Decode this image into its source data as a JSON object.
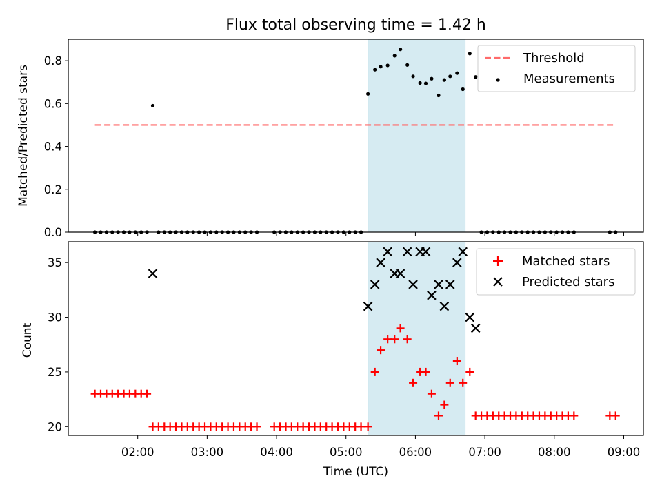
{
  "title": "Flux total observing time = 1.42 h",
  "colors": {
    "threshold": "#ff6b6b",
    "measurement": "#000000",
    "matched": "#ff0000",
    "predicted": "#000000",
    "highlight_fill": "#add8e6"
  },
  "chart_data": [
    {
      "type": "scatter",
      "panel": "top",
      "ylabel": "Matched/Predicted stars",
      "xlabel": "",
      "xlim": [
        "01:00",
        "09:17"
      ],
      "ylim": [
        0,
        0.9
      ],
      "yticks": [
        0.0,
        0.2,
        0.4,
        0.6,
        0.8
      ],
      "ytick_labels": [
        "0.0",
        "0.2",
        "0.4",
        "0.6",
        "0.8"
      ],
      "highlight_span": [
        "05:19",
        "06:43"
      ],
      "legend_position": "upper right",
      "legend": [
        "Threshold",
        "Measurements"
      ],
      "threshold": {
        "name": "Threshold",
        "value": 0.5,
        "x": [
          "01:23",
          "08:52"
        ],
        "style": "dashed"
      },
      "series": [
        {
          "name": "Measurements",
          "marker": "dot",
          "points": [
            [
              "01:23",
              0
            ],
            [
              "01:28",
              0
            ],
            [
              "01:33",
              0
            ],
            [
              "01:38",
              0
            ],
            [
              "01:43",
              0
            ],
            [
              "01:48",
              0
            ],
            [
              "01:53",
              0
            ],
            [
              "01:58",
              0
            ],
            [
              "02:03",
              0
            ],
            [
              "02:08",
              0
            ],
            [
              "02:13",
              0.59
            ],
            [
              "02:18",
              0
            ],
            [
              "02:23",
              0
            ],
            [
              "02:28",
              0
            ],
            [
              "02:33",
              0
            ],
            [
              "02:38",
              0
            ],
            [
              "02:43",
              0
            ],
            [
              "02:48",
              0
            ],
            [
              "02:53",
              0
            ],
            [
              "02:58",
              0
            ],
            [
              "03:03",
              0
            ],
            [
              "03:08",
              0
            ],
            [
              "03:13",
              0
            ],
            [
              "03:18",
              0
            ],
            [
              "03:23",
              0
            ],
            [
              "03:28",
              0
            ],
            [
              "03:33",
              0
            ],
            [
              "03:38",
              0
            ],
            [
              "03:43",
              0
            ],
            [
              "03:58",
              0
            ],
            [
              "04:03",
              0
            ],
            [
              "04:08",
              0
            ],
            [
              "04:13",
              0
            ],
            [
              "04:18",
              0
            ],
            [
              "04:23",
              0
            ],
            [
              "04:28",
              0
            ],
            [
              "04:33",
              0
            ],
            [
              "04:38",
              0
            ],
            [
              "04:43",
              0
            ],
            [
              "04:48",
              0
            ],
            [
              "04:53",
              0
            ],
            [
              "04:58",
              0
            ],
            [
              "05:03",
              0
            ],
            [
              "05:08",
              0
            ],
            [
              "05:13",
              0
            ],
            [
              "05:19",
              0.645
            ],
            [
              "05:25",
              0.758
            ],
            [
              "05:30",
              0.772
            ],
            [
              "05:36",
              0.778
            ],
            [
              "05:42",
              0.823
            ],
            [
              "05:47",
              0.853
            ],
            [
              "05:53",
              0.78
            ],
            [
              "05:58",
              0.727
            ],
            [
              "06:04",
              0.696
            ],
            [
              "06:09",
              0.694
            ],
            [
              "06:14",
              0.716
            ],
            [
              "06:20",
              0.638
            ],
            [
              "06:25",
              0.71
            ],
            [
              "06:30",
              0.727
            ],
            [
              "06:36",
              0.742
            ],
            [
              "06:41",
              0.667
            ],
            [
              "06:47",
              0.833
            ],
            [
              "06:52",
              0.724
            ],
            [
              "06:57",
              0
            ],
            [
              "07:02",
              0
            ],
            [
              "07:07",
              0
            ],
            [
              "07:12",
              0
            ],
            [
              "07:17",
              0
            ],
            [
              "07:22",
              0
            ],
            [
              "07:27",
              0
            ],
            [
              "07:32",
              0
            ],
            [
              "07:37",
              0
            ],
            [
              "07:42",
              0
            ],
            [
              "07:47",
              0
            ],
            [
              "07:52",
              0
            ],
            [
              "07:57",
              0
            ],
            [
              "08:02",
              0
            ],
            [
              "08:07",
              0
            ],
            [
              "08:12",
              0
            ],
            [
              "08:17",
              0
            ],
            [
              "08:48",
              0
            ],
            [
              "08:53",
              0
            ]
          ]
        }
      ]
    },
    {
      "type": "scatter",
      "panel": "bottom",
      "ylabel": "Count",
      "xlabel": "Time (UTC)",
      "xlim": [
        "01:00",
        "09:17"
      ],
      "ylim": [
        19.2,
        36.9
      ],
      "yticks": [
        20,
        25,
        30,
        35
      ],
      "ytick_labels": [
        "20",
        "25",
        "30",
        "35"
      ],
      "xticks": [
        "02:00",
        "03:00",
        "04:00",
        "05:00",
        "06:00",
        "07:00",
        "08:00",
        "09:00"
      ],
      "highlight_span": [
        "05:19",
        "06:43"
      ],
      "legend_position": "upper right",
      "legend": [
        "Matched stars",
        "Predicted stars"
      ],
      "series": [
        {
          "name": "Matched stars",
          "marker": "plus",
          "points": [
            [
              "01:23",
              23
            ],
            [
              "01:28",
              23
            ],
            [
              "01:33",
              23
            ],
            [
              "01:38",
              23
            ],
            [
              "01:43",
              23
            ],
            [
              "01:48",
              23
            ],
            [
              "01:53",
              23
            ],
            [
              "01:58",
              23
            ],
            [
              "02:03",
              23
            ],
            [
              "02:08",
              23
            ],
            [
              "02:13",
              20
            ],
            [
              "02:18",
              20
            ],
            [
              "02:23",
              20
            ],
            [
              "02:28",
              20
            ],
            [
              "02:33",
              20
            ],
            [
              "02:38",
              20
            ],
            [
              "02:43",
              20
            ],
            [
              "02:48",
              20
            ],
            [
              "02:53",
              20
            ],
            [
              "02:58",
              20
            ],
            [
              "03:03",
              20
            ],
            [
              "03:08",
              20
            ],
            [
              "03:13",
              20
            ],
            [
              "03:18",
              20
            ],
            [
              "03:23",
              20
            ],
            [
              "03:28",
              20
            ],
            [
              "03:33",
              20
            ],
            [
              "03:38",
              20
            ],
            [
              "03:43",
              20
            ],
            [
              "03:58",
              20
            ],
            [
              "04:03",
              20
            ],
            [
              "04:08",
              20
            ],
            [
              "04:13",
              20
            ],
            [
              "04:18",
              20
            ],
            [
              "04:23",
              20
            ],
            [
              "04:28",
              20
            ],
            [
              "04:33",
              20
            ],
            [
              "04:38",
              20
            ],
            [
              "04:43",
              20
            ],
            [
              "04:48",
              20
            ],
            [
              "04:53",
              20
            ],
            [
              "04:58",
              20
            ],
            [
              "05:03",
              20
            ],
            [
              "05:08",
              20
            ],
            [
              "05:13",
              20
            ],
            [
              "05:19",
              20
            ],
            [
              "05:25",
              25
            ],
            [
              "05:30",
              27
            ],
            [
              "05:36",
              28
            ],
            [
              "05:42",
              28
            ],
            [
              "05:47",
              29
            ],
            [
              "05:53",
              28
            ],
            [
              "05:58",
              24
            ],
            [
              "06:04",
              25
            ],
            [
              "06:09",
              25
            ],
            [
              "06:14",
              23
            ],
            [
              "06:20",
              21
            ],
            [
              "06:25",
              22
            ],
            [
              "06:30",
              24
            ],
            [
              "06:36",
              26
            ],
            [
              "06:41",
              24
            ],
            [
              "06:47",
              25
            ],
            [
              "06:52",
              21
            ],
            [
              "06:57",
              21
            ],
            [
              "07:02",
              21
            ],
            [
              "07:07",
              21
            ],
            [
              "07:12",
              21
            ],
            [
              "07:17",
              21
            ],
            [
              "07:22",
              21
            ],
            [
              "07:27",
              21
            ],
            [
              "07:32",
              21
            ],
            [
              "07:37",
              21
            ],
            [
              "07:42",
              21
            ],
            [
              "07:47",
              21
            ],
            [
              "07:52",
              21
            ],
            [
              "07:57",
              21
            ],
            [
              "08:02",
              21
            ],
            [
              "08:07",
              21
            ],
            [
              "08:12",
              21
            ],
            [
              "08:17",
              21
            ],
            [
              "08:48",
              21
            ],
            [
              "08:53",
              21
            ]
          ]
        },
        {
          "name": "Predicted stars",
          "marker": "x",
          "points": [
            [
              "02:13",
              34
            ],
            [
              "05:19",
              31
            ],
            [
              "05:25",
              33
            ],
            [
              "05:30",
              35
            ],
            [
              "05:36",
              36
            ],
            [
              "05:42",
              34
            ],
            [
              "05:47",
              34
            ],
            [
              "05:53",
              36
            ],
            [
              "05:58",
              33
            ],
            [
              "06:04",
              36
            ],
            [
              "06:09",
              36
            ],
            [
              "06:14",
              32
            ],
            [
              "06:20",
              33
            ],
            [
              "06:25",
              31
            ],
            [
              "06:30",
              33
            ],
            [
              "06:36",
              35
            ],
            [
              "06:41",
              36
            ],
            [
              "06:47",
              30
            ],
            [
              "06:52",
              29
            ]
          ]
        }
      ]
    }
  ]
}
